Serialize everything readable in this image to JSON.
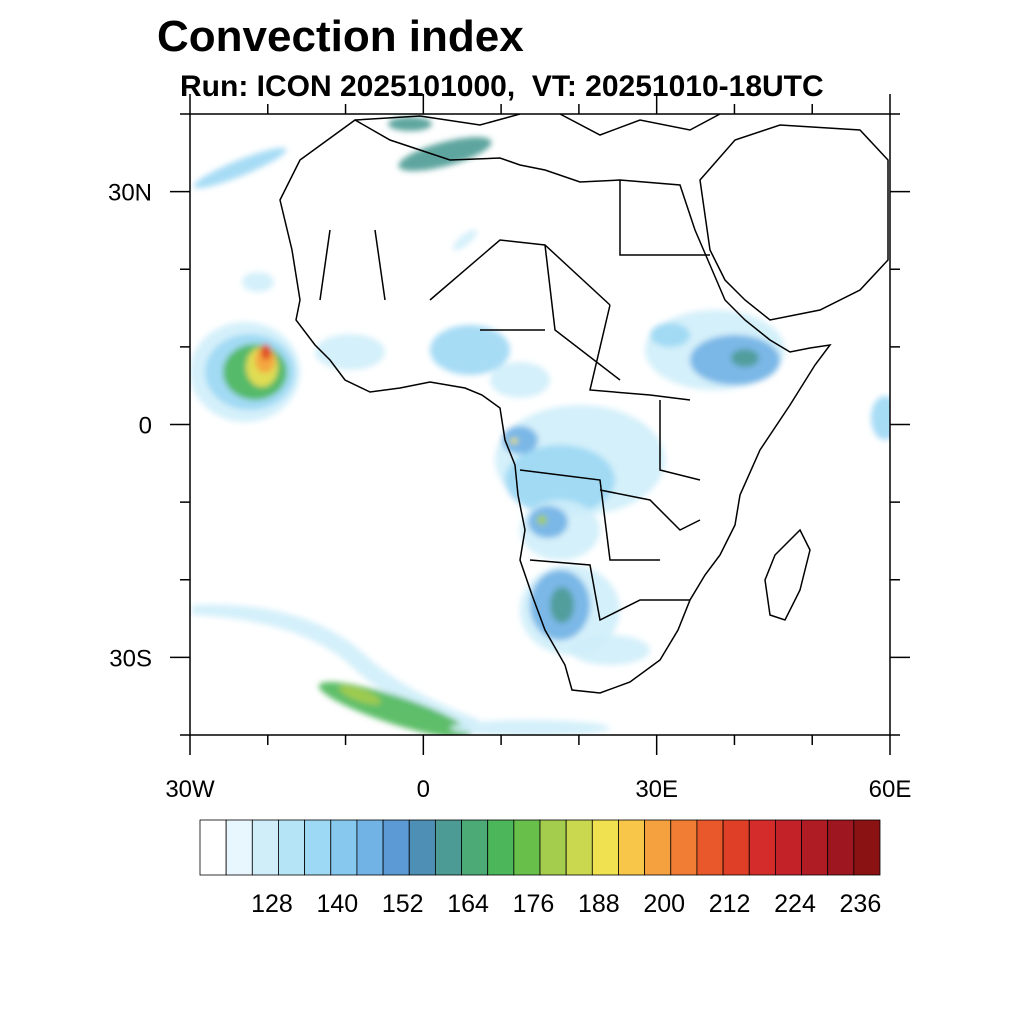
{
  "title": "Convection index",
  "subtitle": "Run: ICON 2025101000,  VT: 20251010-18UTC",
  "axes": {
    "lat_ticks": [
      {
        "value": 30,
        "label": "30N"
      },
      {
        "value": 0,
        "label": "0"
      },
      {
        "value": -30,
        "label": "30S"
      }
    ],
    "lon_ticks": [
      {
        "value": -30,
        "label": "30W"
      },
      {
        "value": 0,
        "label": "0"
      },
      {
        "value": 30,
        "label": "30E"
      },
      {
        "value": 60,
        "label": "60E"
      }
    ],
    "lat_range": [
      -40,
      40
    ],
    "lon_range": [
      -30,
      60
    ]
  },
  "colorbar": {
    "colors": [
      "#ffffff",
      "#e8f6fd",
      "#cfeefa",
      "#b6e4f7",
      "#9dd8f4",
      "#86c8ee",
      "#72b3e5",
      "#5c9ad6",
      "#4d8fb5",
      "#4d9b95",
      "#4caa77",
      "#4cb75a",
      "#68c04b",
      "#a5cd4d",
      "#c9d84f",
      "#f0e150",
      "#f8c74a",
      "#f6a13f",
      "#f07d33",
      "#e8582a",
      "#de3f26",
      "#d42c2b",
      "#c22228",
      "#b01c24",
      "#9e1620",
      "#8a1212"
    ],
    "labels": [
      "128",
      "140",
      "152",
      "164",
      "176",
      "188",
      "200",
      "212",
      "224",
      "236"
    ]
  },
  "field_colors": {
    "light": "#cfeefa",
    "blue": "#9dd8f4",
    "midblue": "#72b3e5",
    "teal": "#4d9b95",
    "green": "#4cb75a",
    "lime": "#a5cd4d",
    "yellow": "#f0e150",
    "orange": "#f6a13f",
    "red": "#de3f26"
  }
}
